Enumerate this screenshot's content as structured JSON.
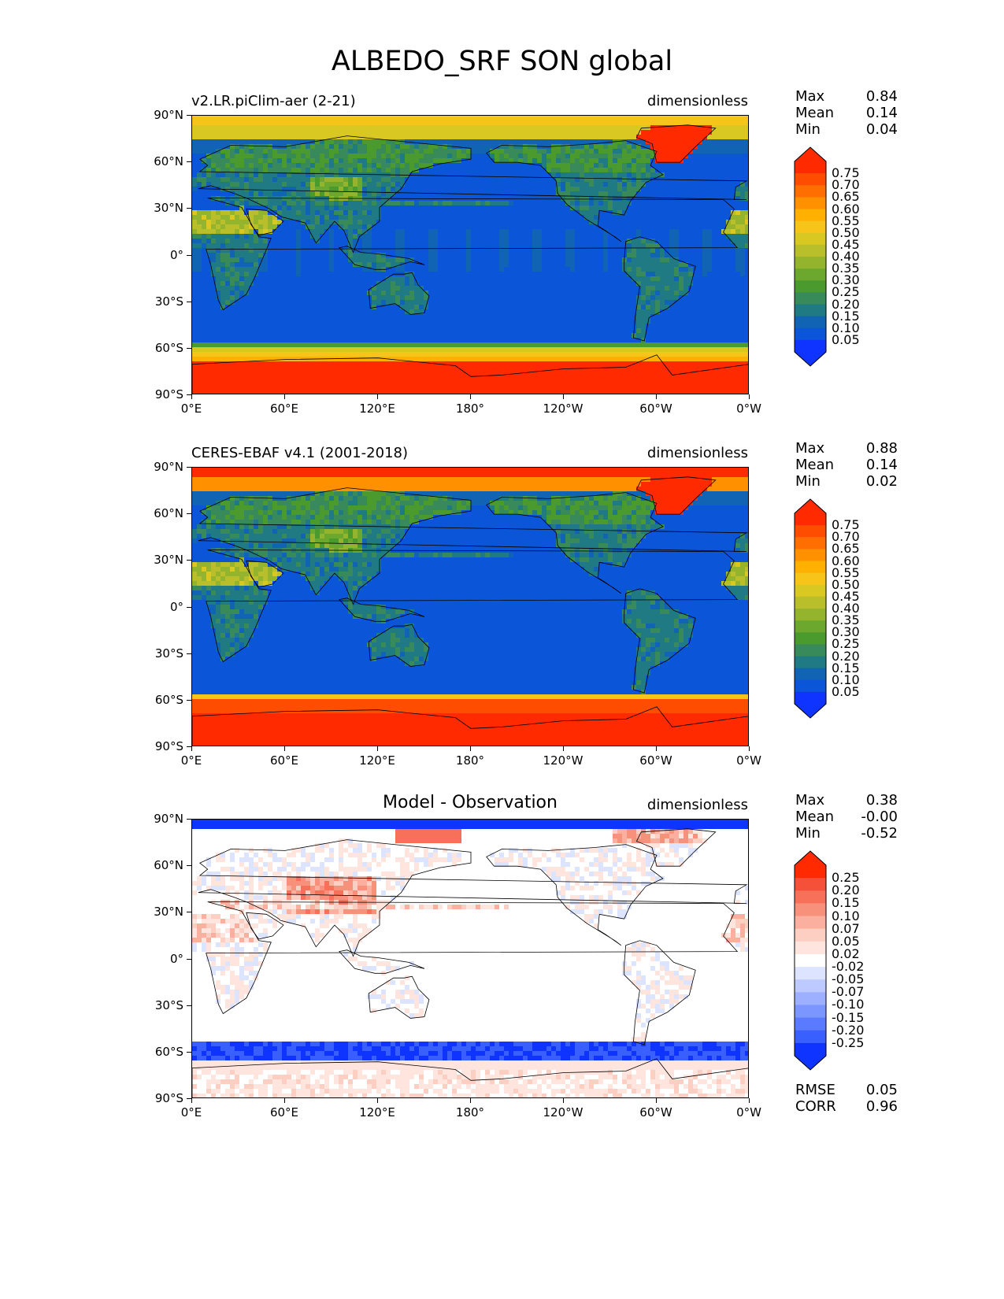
{
  "figure": {
    "title": "ALBEDO_SRF SON global"
  },
  "axes": {
    "lat_ticks": [
      "90°N",
      "60°N",
      "30°N",
      "0°",
      "30°S",
      "60°S",
      "90°S"
    ],
    "lon_ticks": [
      "0°E",
      "60°E",
      "120°E",
      "180°",
      "120°W",
      "60°W",
      "0°W"
    ]
  },
  "panels": [
    {
      "id": "model",
      "subtitle": "v2.LR.piClim-aer (2-21)",
      "heading": "",
      "units": "dimensionless",
      "stats": {
        "max_label": "Max",
        "max": "0.84",
        "mean_label": "Mean",
        "mean": "0.14",
        "min_label": "Min",
        "min": "0.04"
      }
    },
    {
      "id": "obs",
      "subtitle": "CERES-EBAF v4.1 (2001-2018)",
      "heading": "",
      "units": "dimensionless",
      "stats": {
        "max_label": "Max",
        "max": "0.88",
        "mean_label": "Mean",
        "mean": "0.14",
        "min_label": "Min",
        "min": "0.02"
      }
    },
    {
      "id": "diff",
      "subtitle": "",
      "heading": "Model - Observation",
      "units": "dimensionless",
      "stats": {
        "max_label": "Max",
        "max": "0.38",
        "mean_label": "Mean",
        "mean": "-0.00",
        "min_label": "Min",
        "min": "-0.52"
      },
      "extra": {
        "rmse_label": "RMSE",
        "rmse": "0.05",
        "corr_label": "CORR",
        "corr": "0.96"
      }
    }
  ],
  "colorbars": {
    "albedo": {
      "labels": [
        "0.75",
        "0.70",
        "0.65",
        "0.60",
        "0.55",
        "0.50",
        "0.45",
        "0.40",
        "0.35",
        "0.30",
        "0.25",
        "0.20",
        "0.15",
        "0.10",
        "0.05"
      ],
      "colors_top_to_bottom": [
        "#ff2a00",
        "#ff4d00",
        "#ff6e00",
        "#ff9000",
        "#ffb000",
        "#f7c41a",
        "#d9c722",
        "#b9bf2a",
        "#95b42e",
        "#6da82e",
        "#4b9a2e",
        "#388a5a",
        "#1f7a84",
        "#1163b4",
        "#0a55d8",
        "#1034ff"
      ]
    },
    "diff": {
      "labels": [
        "0.25",
        "0.20",
        "0.15",
        "0.10",
        "0.07",
        "0.05",
        "0.02",
        "-0.02",
        "-0.05",
        "-0.07",
        "-0.10",
        "-0.15",
        "-0.20",
        "-0.25"
      ],
      "colors_top_to_bottom": [
        "#ff2a00",
        "#f5503a",
        "#f7705a",
        "#f8917c",
        "#fbb09f",
        "#fdcfc3",
        "#ffe5de",
        "#ffffff",
        "#dde4ff",
        "#bccaff",
        "#9cb0ff",
        "#7c96ff",
        "#5a7bff",
        "#3a5fff",
        "#1034ff"
      ]
    }
  }
}
